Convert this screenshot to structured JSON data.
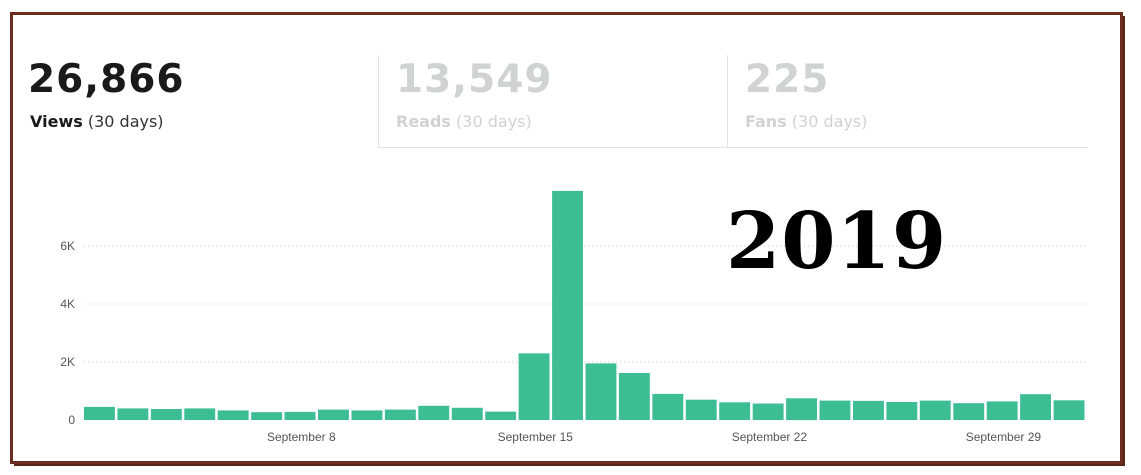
{
  "stats": [
    {
      "value": "26,866",
      "label": "Views",
      "period": "(30 days)",
      "active": true
    },
    {
      "value": "13,549",
      "label": "Reads",
      "period": "(30 days)",
      "active": false
    },
    {
      "value": "225",
      "label": "Fans",
      "period": "(30 days)",
      "active": false
    }
  ],
  "overlay_text": "2019",
  "colors": {
    "bar": "#3dbd94",
    "frame": "#6b2d1e",
    "grid": "#cccccc"
  },
  "chart_data": {
    "type": "bar",
    "ylim": [
      0,
      8000
    ],
    "yticks": [
      {
        "value": 0,
        "label": "0"
      },
      {
        "value": 2000,
        "label": "2K"
      },
      {
        "value": 4000,
        "label": "4K"
      },
      {
        "value": 6000,
        "label": "6K"
      }
    ],
    "xtick_labels": [
      {
        "index": 6.5,
        "label": "September 8"
      },
      {
        "index": 13.5,
        "label": "September 15"
      },
      {
        "index": 20.5,
        "label": "September 22"
      },
      {
        "index": 27.5,
        "label": "September 29"
      }
    ],
    "values": [
      450,
      400,
      380,
      400,
      330,
      270,
      280,
      360,
      330,
      360,
      490,
      420,
      290,
      2300,
      7900,
      1950,
      1620,
      900,
      700,
      610,
      570,
      750,
      670,
      660,
      620,
      670,
      580,
      640,
      890,
      680
    ],
    "grid": true,
    "grid_style": "dotted horizontal"
  }
}
